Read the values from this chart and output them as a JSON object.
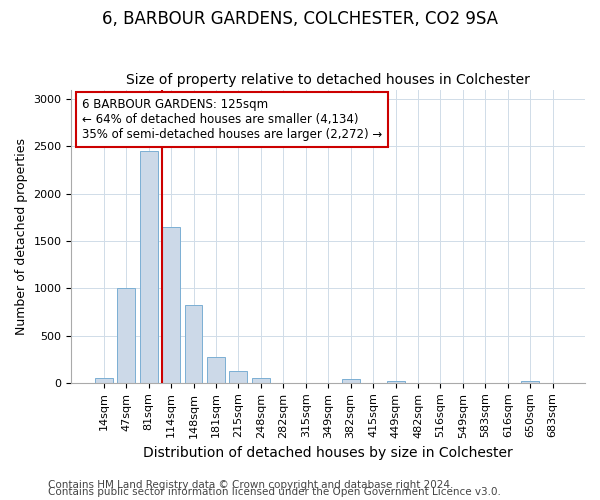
{
  "title": "6, BARBOUR GARDENS, COLCHESTER, CO2 9SA",
  "subtitle": "Size of property relative to detached houses in Colchester",
  "xlabel": "Distribution of detached houses by size in Colchester",
  "ylabel": "Number of detached properties",
  "categories": [
    "14sqm",
    "47sqm",
    "81sqm",
    "114sqm",
    "148sqm",
    "181sqm",
    "215sqm",
    "248sqm",
    "282sqm",
    "315sqm",
    "349sqm",
    "382sqm",
    "415sqm",
    "449sqm",
    "482sqm",
    "516sqm",
    "549sqm",
    "583sqm",
    "616sqm",
    "650sqm",
    "683sqm"
  ],
  "values": [
    50,
    1000,
    2450,
    1650,
    820,
    275,
    120,
    55,
    0,
    0,
    0,
    40,
    0,
    20,
    0,
    0,
    0,
    0,
    0,
    20,
    0
  ],
  "bar_color": "#ccd9e8",
  "bar_edge_color": "#7bafd4",
  "red_line_color": "#cc0000",
  "red_line_x": 3,
  "annotation_line1": "6 BARBOUR GARDENS: 125sqm",
  "annotation_line2": "← 64% of detached houses are smaller (4,134)",
  "annotation_line3": "35% of semi-detached houses are larger (2,272) →",
  "annotation_box_facecolor": "#ffffff",
  "annotation_box_edgecolor": "#cc0000",
  "ylim": [
    0,
    3100
  ],
  "yticks": [
    0,
    500,
    1000,
    1500,
    2000,
    2500,
    3000
  ],
  "figure_facecolor": "#ffffff",
  "axes_facecolor": "#ffffff",
  "grid_color": "#d0dce8",
  "title_fontsize": 12,
  "subtitle_fontsize": 10,
  "xlabel_fontsize": 10,
  "ylabel_fontsize": 9,
  "tick_fontsize": 8,
  "annotation_fontsize": 8.5,
  "footnote_fontsize": 7.5,
  "footnote1": "Contains HM Land Registry data © Crown copyright and database right 2024.",
  "footnote2": "Contains public sector information licensed under the Open Government Licence v3.0."
}
